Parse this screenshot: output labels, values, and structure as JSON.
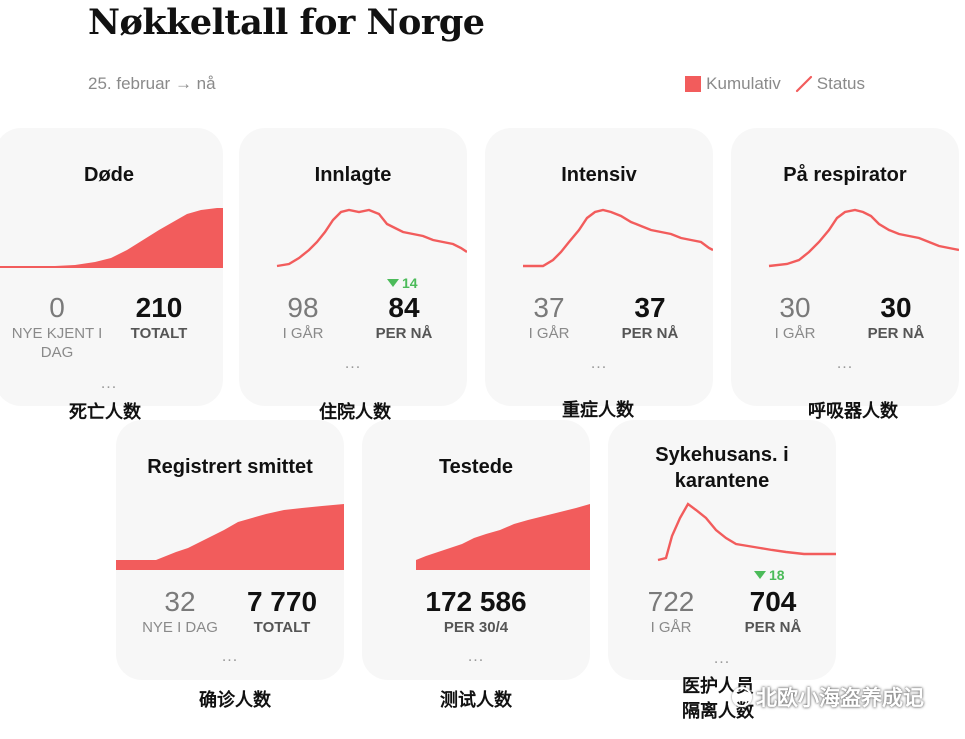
{
  "header": {
    "title": "Nøkkeltall for Norge",
    "date_range": "25. februar → nå",
    "legend_cumulative": "Kumulativ",
    "legend_status": "Status"
  },
  "colors": {
    "accent": "#f25c5c",
    "delta_green": "#4cbb5a",
    "card_bg": "#f7f7f7"
  },
  "cards": {
    "dode": {
      "title": "Døde",
      "left_value": "0",
      "left_label": "NYE KJENT I DAG",
      "right_value": "210",
      "right_label": "TOTALT",
      "more": "...",
      "caption": "死亡人数",
      "chart": "cumulative"
    },
    "innlagte": {
      "title": "Innlagte",
      "left_value": "98",
      "left_label": "I GÅR",
      "right_value": "84",
      "right_label": "PER NÅ",
      "delta": "14",
      "more": "...",
      "caption": "住院人数",
      "chart": "status"
    },
    "intensiv": {
      "title": "Intensiv",
      "left_value": "37",
      "left_label": "I GÅR",
      "right_value": "37",
      "right_label": "PER NÅ",
      "more": "...",
      "caption": "重症人数",
      "chart": "status"
    },
    "respirator": {
      "title": "På respirator",
      "left_value": "30",
      "left_label": "I GÅR",
      "right_value": "30",
      "right_label": "PER NÅ",
      "more": "...",
      "caption": "呼吸器人数",
      "chart": "status"
    },
    "smittet": {
      "title": "Registrert smittet",
      "left_value": "32",
      "left_label": "NYE I DAG",
      "right_value": "7 770",
      "right_label": "TOTALT",
      "more": "...",
      "caption": "确诊人数",
      "chart": "cumulative"
    },
    "testede": {
      "title": "Testede",
      "center_value": "172 586",
      "center_label": "PER 30/4",
      "more": "...",
      "caption": "测试人数",
      "chart": "cumulative"
    },
    "karantene": {
      "title_line1": "Sykehusans. i",
      "title_line2": "karantene",
      "left_value": "722",
      "left_label": "I GÅR",
      "right_value": "704",
      "right_label": "PER NÅ",
      "delta": "18",
      "more": "...",
      "caption_line1": "医护人员",
      "caption_line2": "隔离人数",
      "chart": "status"
    }
  },
  "watermark": "北欧小海盗养成记"
}
